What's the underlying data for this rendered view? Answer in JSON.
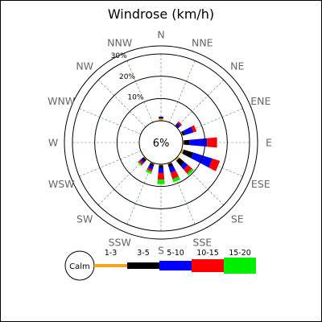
{
  "chart_data": {
    "type": "windrose",
    "title": "Windrose (km/h)",
    "center_label": "6%",
    "calm_label": "Calm",
    "directions": [
      "N",
      "NNE",
      "NE",
      "ENE",
      "E",
      "ESE",
      "SE",
      "SSE",
      "S",
      "SSW",
      "SW",
      "WSW",
      "W",
      "WNW",
      "NW",
      "NNW"
    ],
    "ring_values": [
      10,
      20,
      30
    ],
    "ring_labels": [
      "10%",
      "20%",
      "30%"
    ],
    "ring_max": 30,
    "bins": [
      {
        "label": "1-3",
        "color": "#f5a31a"
      },
      {
        "label": "3-5",
        "color": "#000000"
      },
      {
        "label": "5-10",
        "color": "#0000ff"
      },
      {
        "label": "10-15",
        "color": "#ff0000"
      },
      {
        "label": "15-20",
        "color": "#00ee00"
      }
    ],
    "series": [
      {
        "direction": "N",
        "values": [
          1.0,
          0.3,
          0.6,
          0.0,
          0.0
        ]
      },
      {
        "direction": "NNE",
        "values": [
          0.0,
          0.0,
          0.0,
          0.0,
          0.0
        ]
      },
      {
        "direction": "NE",
        "values": [
          0.3,
          0.5,
          1.0,
          0.8,
          0.0
        ]
      },
      {
        "direction": "ENE",
        "values": [
          0.5,
          1.0,
          4.0,
          1.5,
          0.0
        ]
      },
      {
        "direction": "E",
        "values": [
          0.5,
          2.5,
          8.0,
          4.5,
          0.0
        ]
      },
      {
        "direction": "ESE",
        "values": [
          1.0,
          4.5,
          9.0,
          3.5,
          0.0
        ]
      },
      {
        "direction": "SE",
        "values": [
          1.0,
          3.0,
          2.0,
          2.5,
          1.0
        ]
      },
      {
        "direction": "SSE",
        "values": [
          0.5,
          1.5,
          2.5,
          3.0,
          1.5
        ]
      },
      {
        "direction": "S",
        "values": [
          0.5,
          1.0,
          2.5,
          3.0,
          2.0
        ]
      },
      {
        "direction": "SSW",
        "values": [
          0.5,
          1.0,
          1.5,
          1.0,
          1.0
        ]
      },
      {
        "direction": "SW",
        "values": [
          0.5,
          1.0,
          1.0,
          1.0,
          0.5
        ]
      },
      {
        "direction": "WSW",
        "values": [
          0.0,
          0.0,
          0.0,
          0.0,
          0.0
        ]
      },
      {
        "direction": "W",
        "values": [
          0.0,
          0.0,
          0.0,
          0.0,
          0.0
        ]
      },
      {
        "direction": "WNW",
        "values": [
          0.0,
          0.0,
          0.0,
          0.0,
          0.0
        ]
      },
      {
        "direction": "NW",
        "values": [
          0.0,
          0.0,
          0.0,
          0.0,
          0.0
        ]
      },
      {
        "direction": "NNW",
        "values": [
          0.0,
          0.0,
          0.0,
          0.0,
          0.0
        ]
      }
    ]
  }
}
